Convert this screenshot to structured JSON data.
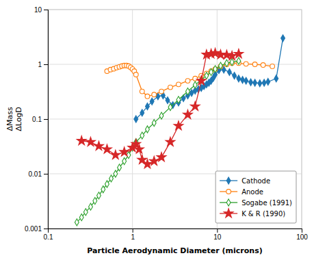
{
  "chart_data": {
    "type": "line",
    "xlabel": "Particle Aerodynamic Diameter (microns)",
    "ylabel": "ΔMass\nΔLogD",
    "log": true,
    "grid": true,
    "legend": "lower right",
    "xlim": [
      0.1,
      100
    ],
    "ylim": [
      0.001,
      10
    ],
    "xticks": [
      0.1,
      1,
      10,
      100
    ],
    "yticks": [
      0.001,
      0.01,
      0.1,
      1,
      10
    ],
    "series": [
      {
        "name": "Cathode",
        "marker": "diamond",
        "x": [
          1.1,
          1.3,
          1.5,
          1.7,
          2.0,
          2.3,
          2.6,
          3.0,
          3.5,
          4.0,
          4.5,
          5.0,
          5.5,
          6.0,
          6.5,
          7.0,
          7.5,
          8.0,
          8.5,
          9.0,
          9.5,
          10.5,
          12.0,
          14.0,
          16.0,
          18.0,
          20.0,
          22.0,
          25.0,
          28.0,
          32.0,
          36.0,
          40.0,
          50.0,
          60.0
        ],
        "values": [
          0.1,
          0.13,
          0.17,
          0.21,
          0.26,
          0.27,
          0.22,
          0.18,
          0.2,
          0.24,
          0.27,
          0.3,
          0.33,
          0.35,
          0.37,
          0.4,
          0.43,
          0.46,
          0.5,
          0.56,
          0.65,
          0.78,
          0.8,
          0.72,
          0.62,
          0.55,
          0.52,
          0.5,
          0.47,
          0.46,
          0.45,
          0.46,
          0.48,
          0.55,
          3.0
        ]
      },
      {
        "name": "Anode",
        "marker": "circle-open",
        "x": [
          0.5,
          0.55,
          0.6,
          0.65,
          0.7,
          0.75,
          0.8,
          0.85,
          0.9,
          0.95,
          1.0,
          1.05,
          1.1,
          1.3,
          1.5,
          1.8,
          2.2,
          2.8,
          3.5,
          4.5,
          5.5,
          6.5,
          7.5,
          8.5,
          9.5,
          11.0,
          13.0,
          15.0,
          18.0,
          22.0,
          28.0,
          35.0,
          45.0
        ],
        "values": [
          0.75,
          0.8,
          0.83,
          0.87,
          0.9,
          0.93,
          0.95,
          0.95,
          0.93,
          0.88,
          0.82,
          0.75,
          0.65,
          0.32,
          0.26,
          0.28,
          0.32,
          0.38,
          0.43,
          0.5,
          0.55,
          0.62,
          0.68,
          0.75,
          0.82,
          0.92,
          1.0,
          1.05,
          1.05,
          1.02,
          1.0,
          0.97,
          0.92
        ]
      },
      {
        "name": "Sogabe (1991)",
        "marker": "diamond-open",
        "x": [
          0.22,
          0.25,
          0.28,
          0.32,
          0.36,
          0.4,
          0.45,
          0.5,
          0.56,
          0.63,
          0.7,
          0.8,
          0.9,
          1.0,
          1.1,
          1.3,
          1.5,
          1.8,
          2.2,
          2.8,
          3.5,
          4.5,
          5.5,
          6.5,
          7.5,
          8.5,
          9.5,
          11.0,
          13.0,
          15.0,
          18.0
        ],
        "values": [
          0.0013,
          0.0016,
          0.002,
          0.0025,
          0.0032,
          0.004,
          0.0052,
          0.0065,
          0.0082,
          0.01,
          0.013,
          0.017,
          0.022,
          0.03,
          0.038,
          0.05,
          0.065,
          0.085,
          0.115,
          0.165,
          0.225,
          0.32,
          0.42,
          0.52,
          0.62,
          0.72,
          0.82,
          0.94,
          1.05,
          1.1,
          1.15
        ]
      },
      {
        "name": "K & R (1990)",
        "marker": "star",
        "x": [
          0.25,
          0.32,
          0.4,
          0.5,
          0.63,
          0.8,
          1.0,
          1.1,
          1.2,
          1.3,
          1.5,
          1.8,
          2.2,
          2.8,
          3.5,
          4.5,
          5.5,
          6.5,
          7.5,
          8.5,
          9.5,
          11.0,
          13.0,
          15.0,
          18.0
        ],
        "values": [
          0.04,
          0.038,
          0.032,
          0.028,
          0.022,
          0.025,
          0.03,
          0.035,
          0.028,
          0.018,
          0.015,
          0.017,
          0.02,
          0.038,
          0.075,
          0.12,
          0.17,
          0.5,
          1.5,
          1.55,
          1.6,
          1.5,
          1.48,
          1.42,
          1.55
        ]
      }
    ]
  }
}
